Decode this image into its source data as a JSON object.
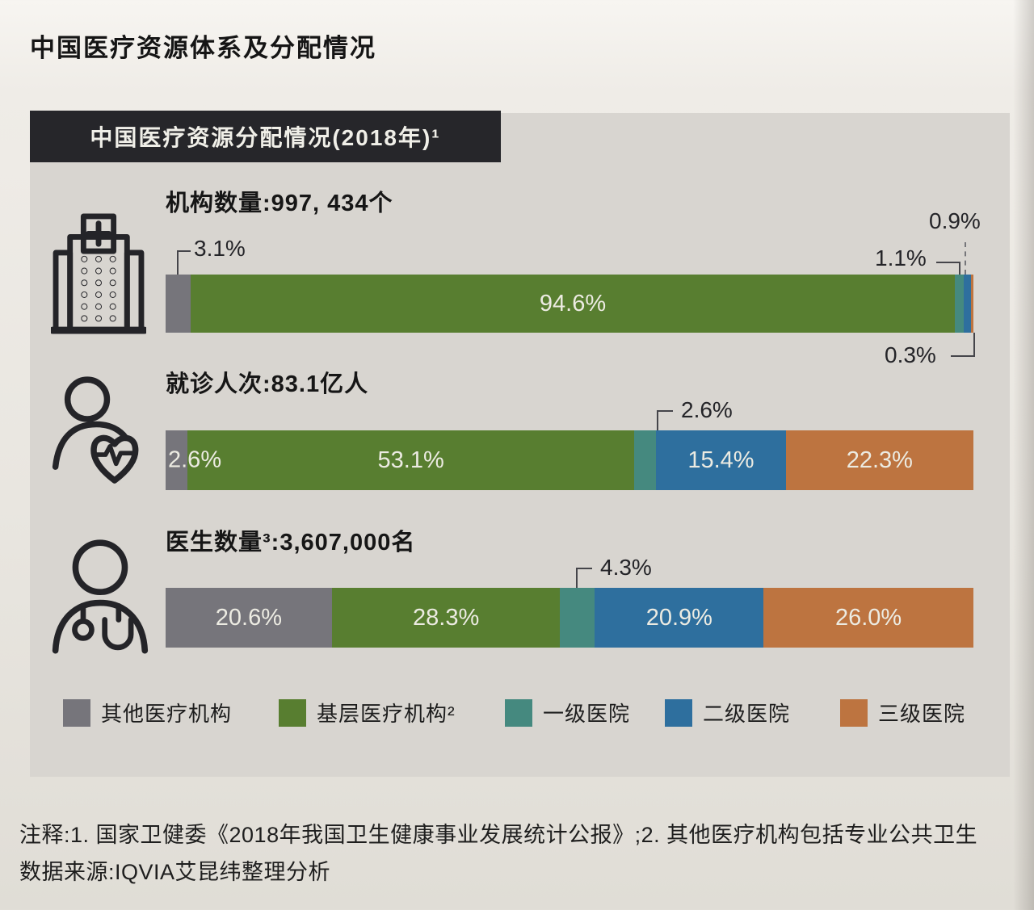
{
  "page": {
    "title": "中国医疗资源体系及分配情况",
    "panel_title": "中国医疗资源分配情况(2018年)¹"
  },
  "colors": {
    "other": "#76757b",
    "primary_care": "#587e30",
    "tier1": "#45897f",
    "tier2": "#2e6f9e",
    "tier3": "#bd7440",
    "panel_bg": "#d8d5d0",
    "header_bg": "#26262a"
  },
  "chart_data": [
    {
      "type": "bar",
      "stacked": true,
      "orientation": "horizontal",
      "title": "机构数量:997, 434个",
      "metric": "机构数量",
      "total": "997, 434个",
      "series": [
        {
          "key": "other",
          "name": "其他医疗机构",
          "value": 3.1,
          "label": "3.1%",
          "label_inside": false,
          "color": "#76757b"
        },
        {
          "key": "primary-care",
          "name": "基层医疗机构",
          "value": 94.6,
          "label": "94.6%",
          "label_inside": true,
          "color": "#587e30"
        },
        {
          "key": "tier1",
          "name": "一级医院",
          "value": 1.1,
          "label": "1.1%",
          "label_inside": false,
          "color": "#45897f"
        },
        {
          "key": "tier2",
          "name": "二级医院",
          "value": 0.9,
          "label": "0.9%",
          "label_inside": false,
          "color": "#2e6f9e"
        },
        {
          "key": "tier3",
          "name": "三级医院",
          "value": 0.3,
          "label": "0.3%",
          "label_inside": false,
          "color": "#bd7440"
        }
      ]
    },
    {
      "type": "bar",
      "stacked": true,
      "orientation": "horizontal",
      "title": "就诊人次:83.1亿人",
      "metric": "就诊人次",
      "total": "83.1亿人",
      "series": [
        {
          "key": "other",
          "name": "其他医疗机构",
          "value": 2.6,
          "label": "2.6%",
          "label_inside": true,
          "color": "#76757b"
        },
        {
          "key": "primary-care",
          "name": "基层医疗机构",
          "value": 53.1,
          "label": "53.1%",
          "label_inside": true,
          "color": "#587e30"
        },
        {
          "key": "tier1",
          "name": "一级医院",
          "value": 2.6,
          "label": "2.6%",
          "label_inside": false,
          "color": "#45897f"
        },
        {
          "key": "tier2",
          "name": "二级医院",
          "value": 15.4,
          "label": "15.4%",
          "label_inside": true,
          "color": "#2e6f9e"
        },
        {
          "key": "tier3",
          "name": "三级医院",
          "value": 22.3,
          "label": "22.3%",
          "label_inside": true,
          "color": "#bd7440"
        }
      ]
    },
    {
      "type": "bar",
      "stacked": true,
      "orientation": "horizontal",
      "title": "医生数量³:3,607,000名",
      "metric": "医生数量",
      "total": "3,607,000名",
      "series": [
        {
          "key": "other",
          "name": "其他医疗机构",
          "value": 20.6,
          "label": "20.6%",
          "label_inside": true,
          "color": "#76757b"
        },
        {
          "key": "primary-care",
          "name": "基层医疗机构",
          "value": 28.3,
          "label": "28.3%",
          "label_inside": true,
          "color": "#587e30"
        },
        {
          "key": "tier1",
          "name": "一级医院",
          "value": 4.3,
          "label": "4.3%",
          "label_inside": false,
          "color": "#45897f"
        },
        {
          "key": "tier2",
          "name": "二级医院",
          "value": 20.9,
          "label": "20.9%",
          "label_inside": true,
          "color": "#2e6f9e"
        },
        {
          "key": "tier3",
          "name": "三级医院",
          "value": 26.0,
          "label": "26.0%",
          "label_inside": true,
          "color": "#bd7440"
        }
      ]
    }
  ],
  "legend": [
    {
      "label": "其他医疗机构",
      "color": "#76757b"
    },
    {
      "label": "基层医疗机构²",
      "color": "#587e30"
    },
    {
      "label": "一级医院",
      "color": "#45897f"
    },
    {
      "label": "二级医院",
      "color": "#2e6f9e"
    },
    {
      "label": "三级医院",
      "color": "#bd7440"
    }
  ],
  "notes": {
    "line1": "注释:1. 国家卫健委《2018年我国卫生健康事业发展统计公报》;2. 其他医疗机构包括专业公共卫生",
    "line2": "数据来源:IQVIA艾昆纬整理分析"
  }
}
